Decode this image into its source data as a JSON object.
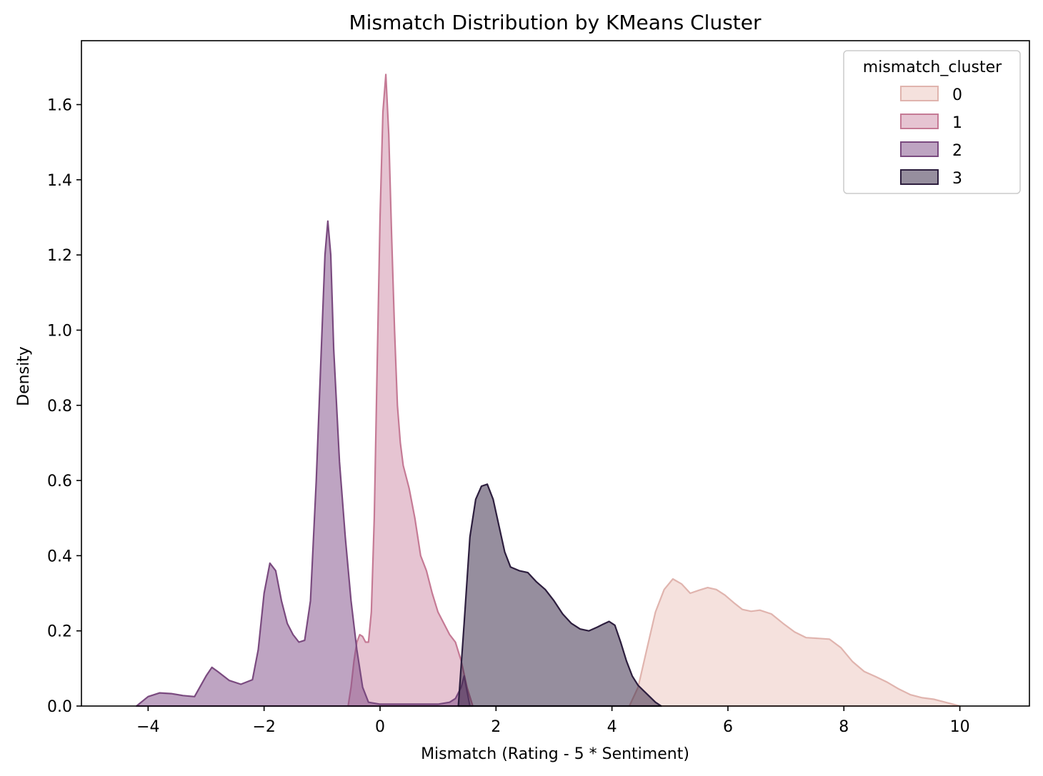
{
  "chart_data": {
    "type": "area",
    "title": "Mismatch Distribution by KMeans Cluster",
    "xlabel": "Mismatch (Rating - 5 * Sentiment)",
    "ylabel": "Density",
    "xlim": [
      -5.15,
      11.2
    ],
    "ylim": [
      0,
      1.77
    ],
    "xticks": [
      -4,
      -2,
      0,
      2,
      4,
      6,
      8,
      10
    ],
    "xtick_labels": [
      "−4",
      "−2",
      "0",
      "2",
      "4",
      "6",
      "8",
      "10"
    ],
    "yticks": [
      0.0,
      0.2,
      0.4,
      0.6,
      0.8,
      1.0,
      1.2,
      1.4,
      1.6
    ],
    "ytick_labels": [
      "0.0",
      "0.2",
      "0.4",
      "0.6",
      "0.8",
      "1.0",
      "1.2",
      "1.4",
      "1.6"
    ],
    "grid": false,
    "legend": {
      "title": "mismatch_cluster",
      "placement": "top-right"
    },
    "series": [
      {
        "name": "0",
        "fill": "#ebc4bc",
        "stroke": "#e0b4ae",
        "x": [
          4.3,
          4.45,
          4.6,
          4.75,
          4.9,
          5.05,
          5.2,
          5.35,
          5.5,
          5.65,
          5.8,
          5.95,
          6.1,
          6.25,
          6.4,
          6.55,
          6.75,
          6.95,
          7.15,
          7.35,
          7.55,
          7.75,
          7.95,
          8.15,
          8.35,
          8.55,
          8.75,
          8.95,
          9.15,
          9.35,
          9.55,
          9.75,
          10.0
        ],
        "y": [
          0.0,
          0.05,
          0.15,
          0.25,
          0.31,
          0.338,
          0.325,
          0.3,
          0.308,
          0.315,
          0.31,
          0.295,
          0.275,
          0.257,
          0.252,
          0.255,
          0.245,
          0.22,
          0.197,
          0.182,
          0.18,
          0.178,
          0.155,
          0.118,
          0.092,
          0.078,
          0.063,
          0.045,
          0.03,
          0.022,
          0.018,
          0.01,
          0.0
        ]
      },
      {
        "name": "1",
        "fill": "#cd8aa5",
        "stroke": "#c57a95",
        "x": [
          -0.55,
          -0.5,
          -0.45,
          -0.4,
          -0.35,
          -0.3,
          -0.25,
          -0.2,
          -0.15,
          -0.1,
          -0.05,
          0.0,
          0.05,
          0.1,
          0.15,
          0.2,
          0.25,
          0.3,
          0.35,
          0.4,
          0.5,
          0.6,
          0.7,
          0.8,
          0.9,
          1.0,
          1.1,
          1.2,
          1.3,
          1.4,
          1.5,
          1.6
        ],
        "y": [
          0.0,
          0.05,
          0.12,
          0.17,
          0.19,
          0.185,
          0.17,
          0.17,
          0.25,
          0.5,
          0.9,
          1.3,
          1.58,
          1.68,
          1.52,
          1.25,
          1.0,
          0.8,
          0.7,
          0.64,
          0.58,
          0.5,
          0.4,
          0.36,
          0.3,
          0.25,
          0.22,
          0.19,
          0.17,
          0.12,
          0.05,
          0.0
        ]
      },
      {
        "name": "2",
        "fill": "#7e4a86",
        "stroke": "#7a4a7f",
        "x": [
          -4.2,
          -4.0,
          -3.8,
          -3.6,
          -3.4,
          -3.2,
          -3.0,
          -2.9,
          -2.8,
          -2.6,
          -2.4,
          -2.2,
          -2.1,
          -2.0,
          -1.9,
          -1.8,
          -1.7,
          -1.6,
          -1.5,
          -1.4,
          -1.3,
          -1.2,
          -1.1,
          -1.0,
          -0.95,
          -0.9,
          -0.85,
          -0.8,
          -0.7,
          -0.6,
          -0.5,
          -0.4,
          -0.3,
          -0.2,
          0.0,
          0.3,
          0.6,
          0.8,
          1.0,
          1.2,
          1.3,
          1.4,
          1.45,
          1.5,
          1.55
        ],
        "y": [
          0.0,
          0.025,
          0.035,
          0.033,
          0.028,
          0.025,
          0.08,
          0.103,
          0.092,
          0.068,
          0.058,
          0.07,
          0.15,
          0.3,
          0.38,
          0.36,
          0.28,
          0.22,
          0.19,
          0.17,
          0.175,
          0.28,
          0.6,
          1.0,
          1.2,
          1.29,
          1.2,
          0.95,
          0.65,
          0.45,
          0.28,
          0.15,
          0.05,
          0.01,
          0.005,
          0.005,
          0.005,
          0.005,
          0.005,
          0.01,
          0.02,
          0.05,
          0.08,
          0.04,
          0.0
        ]
      },
      {
        "name": "3",
        "fill": "#2d1e3e",
        "stroke": "#2d1e3e",
        "x": [
          1.35,
          1.45,
          1.55,
          1.65,
          1.75,
          1.85,
          1.95,
          2.05,
          2.15,
          2.25,
          2.4,
          2.55,
          2.7,
          2.85,
          3.0,
          3.15,
          3.3,
          3.45,
          3.6,
          3.75,
          3.85,
          3.95,
          4.05,
          4.15,
          4.25,
          4.35,
          4.45,
          4.55,
          4.65,
          4.75,
          4.85
        ],
        "y": [
          0.0,
          0.22,
          0.45,
          0.55,
          0.585,
          0.59,
          0.55,
          0.48,
          0.41,
          0.37,
          0.36,
          0.355,
          0.33,
          0.31,
          0.28,
          0.245,
          0.22,
          0.205,
          0.2,
          0.21,
          0.218,
          0.225,
          0.215,
          0.17,
          0.12,
          0.08,
          0.055,
          0.04,
          0.025,
          0.01,
          0.0
        ]
      }
    ]
  }
}
